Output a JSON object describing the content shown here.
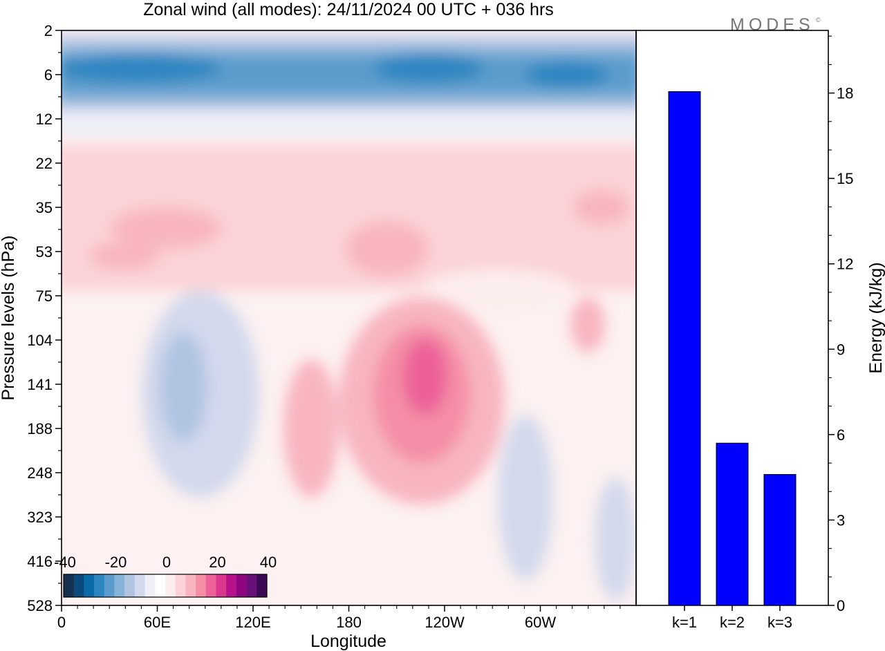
{
  "brand": "MODES",
  "brand_mark": "©",
  "chart_data": [
    {
      "type": "heatmap",
      "title": "Zonal wind (all modes):  24/11/2024  00 UTC  + 036 hrs",
      "xlabel": "Longitude",
      "ylabel": "Pressure levels (hPa)",
      "x_ticks": [
        "0",
        "60E",
        "120E",
        "180",
        "120W",
        "60W"
      ],
      "y_ticks": [
        "2",
        "6",
        "12",
        "22",
        "35",
        "53",
        "75",
        "104",
        "141",
        "188",
        "248",
        "323",
        "416",
        "528"
      ],
      "colorbar": {
        "labels": [
          "-40",
          "-20",
          "0",
          "20",
          "40"
        ],
        "range": [
          -40,
          40
        ],
        "colors": [
          "#16304f",
          "#0b4a7c",
          "#0a6aa8",
          "#2e86c1",
          "#5b9ccd",
          "#86b3d8",
          "#b0c4e2",
          "#d3d9ed",
          "#efeff7",
          "#ffffff",
          "#fdeeee",
          "#fbd3d6",
          "#f8b5bf",
          "#f48ea6",
          "#ec6199",
          "#db378f",
          "#b8128a",
          "#8e067f",
          "#661078",
          "#3c0a55"
        ]
      }
    },
    {
      "type": "bar",
      "categories": [
        "k=1",
        "k=2",
        "k=3"
      ],
      "values": [
        18.05,
        5.7,
        4.6
      ],
      "ylabel": "Energy (kJ/kg)",
      "ylim": [
        0,
        20.2
      ],
      "y_ticks": [
        0,
        3,
        6,
        9,
        12,
        15,
        18
      ],
      "bar_color": "#0000ff"
    }
  ]
}
